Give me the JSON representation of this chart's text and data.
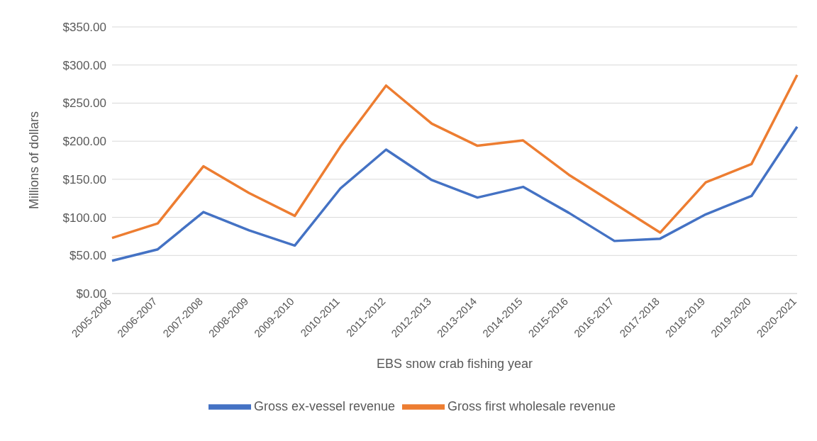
{
  "chart_data": {
    "type": "line",
    "xlabel": "EBS snow crab fishing year",
    "ylabel": "Millions of dollars",
    "categories": [
      "2005-2006",
      "2006-2007",
      "2007-2008",
      "2008-2009",
      "2009-2010",
      "2010-2011",
      "2011-2012",
      "2012-2013",
      "2013-2014",
      "2014-2015",
      "2015-2016",
      "2016-2017",
      "2017-2018",
      "2018-2019",
      "2019-2020",
      "2020-2021"
    ],
    "series": [
      {
        "name": "Gross ex-vessel revenue",
        "color": "#4472c4",
        "values": [
          43,
          58,
          107,
          83,
          63,
          138,
          189,
          149,
          126,
          140,
          106,
          69,
          72,
          104,
          128,
          219
        ]
      },
      {
        "name": "Gross first wholesale revenue",
        "color": "#ed7d31",
        "values": [
          73,
          92,
          167,
          132,
          102,
          193,
          273,
          223,
          194,
          201,
          156,
          118,
          80,
          146,
          170,
          287
        ]
      }
    ],
    "ylim": [
      0,
      350
    ],
    "yticks": [
      {
        "value": 0,
        "label": "$0.00"
      },
      {
        "value": 50,
        "label": "$50.00"
      },
      {
        "value": 100,
        "label": "$100.00"
      },
      {
        "value": 150,
        "label": "$150.00"
      },
      {
        "value": 200,
        "label": "$200.00"
      },
      {
        "value": 250,
        "label": "$250.00"
      },
      {
        "value": 300,
        "label": "$300.00"
      },
      {
        "value": 350,
        "label": "$350.00"
      }
    ],
    "grid": "y",
    "legend": "bottom",
    "marker": "none",
    "line_style": "solid"
  }
}
